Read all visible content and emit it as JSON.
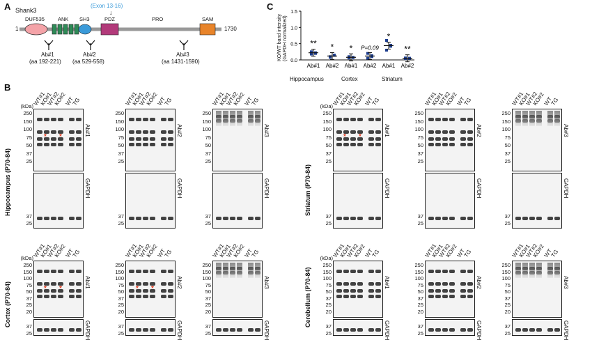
{
  "panel_a": {
    "letter": "A",
    "protein": "Shank3",
    "start": "1",
    "end": "1730",
    "domains": [
      "DUF535",
      "ANK",
      "SH3",
      "PDZ",
      "PRO",
      "SAM"
    ],
    "exon_note": "(Exon 13-16)",
    "antibodies": [
      {
        "name": "Ab#1",
        "range": "(aa 192-221)"
      },
      {
        "name": "Ab#2",
        "range": "(aa 529-558)"
      },
      {
        "name": "Ab#3",
        "range": "(aa 1431-1590)"
      }
    ],
    "colors": {
      "duf535": "#f4a3a8",
      "ank": "#2e8b57",
      "sh3": "#3a9ad9",
      "pdz": "#b23a7a",
      "sam": "#e8842a",
      "exon": "#3a9ad9"
    }
  },
  "panel_b": {
    "letter": "B",
    "kda_label": "(kDa)",
    "lanes_ko": [
      "WT#1",
      "KO#1",
      "WT#2",
      "KO#2",
      "WT",
      "TG"
    ],
    "regions": [
      "Hippocampus (P70-84)",
      "Striatum (P70-84)",
      "Cortex (P70-84)",
      "Cerebellum (P70-84)"
    ],
    "markers_top": [
      "250",
      "150",
      "100",
      "75",
      "50",
      "37",
      "25"
    ],
    "markers_mid": [
      "250",
      "150",
      "100",
      "75",
      "50",
      "37",
      "25",
      "20",
      "15"
    ],
    "markers_gapdh": [
      "37",
      "25"
    ],
    "antibody_labels": [
      "Ab#1",
      "Ab#2",
      "Ab#3"
    ],
    "loading_label": "GAPDH",
    "star": "*"
  },
  "panel_c": {
    "letter": "C",
    "ylabel": "KO/WT band intensity (GAPDH normalized)",
    "y_ticks": [
      "1.5",
      "1.0",
      "0.5",
      "0.0"
    ],
    "p_label": "P=0.09",
    "chart_data": {
      "type": "scatter",
      "ylabel": "KO/WT band intensity (GAPDH normalized)",
      "ylim": [
        0,
        1.5
      ],
      "categories": [
        "Ab#1",
        "Ab#2",
        "Ab#1",
        "Ab#2",
        "Ab#1",
        "Ab#2"
      ],
      "groups": [
        "Hippocampus",
        "Cortex",
        "Striatum"
      ],
      "means": [
        0.22,
        0.12,
        0.08,
        0.12,
        0.44,
        0.05
      ],
      "points": [
        [
          0.18,
          0.22,
          0.25,
          0.2
        ],
        [
          0.1,
          0.14,
          0.08,
          0.15
        ],
        [
          0.06,
          0.08,
          0.1,
          0.07
        ],
        [
          0.05,
          0.13,
          0.2,
          0.1
        ],
        [
          0.3,
          0.45,
          0.6,
          0.42
        ],
        [
          0.04,
          0.05,
          0.06,
          0.05
        ]
      ],
      "significance": [
        "**",
        "*",
        "*",
        "P=0.09",
        "*",
        "**"
      ]
    }
  }
}
